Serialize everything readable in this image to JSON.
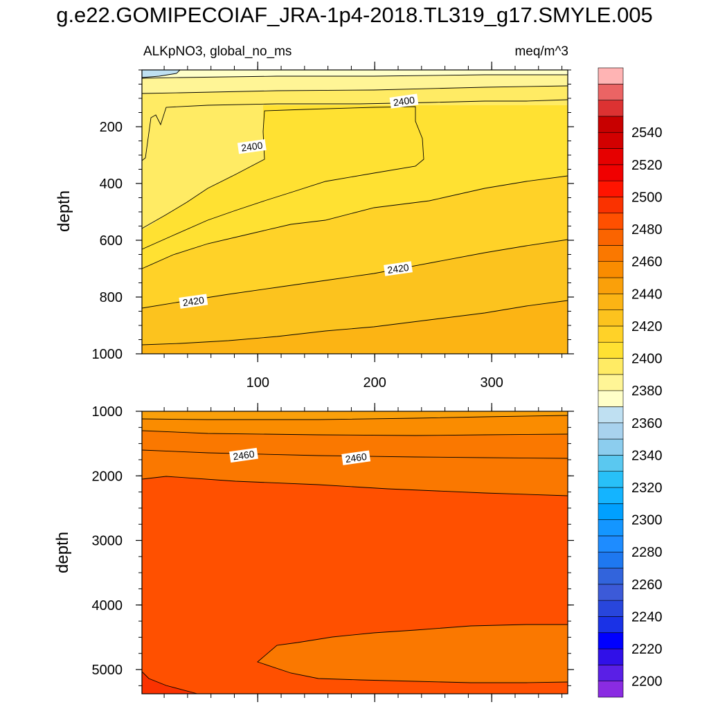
{
  "figure_title": "g.e22.GOMIPECOIAF_JRA-1p4-2018.TL319_g17.SMYLE.005",
  "variable_label": "ALKpNO3, global_no_ms",
  "units_label": "meq/m^3",
  "chart_data": [
    {
      "type": "contour",
      "panel": "top",
      "ylabel": "depth",
      "xlim": [
        1,
        365
      ],
      "ylim": [
        0,
        1000
      ],
      "y_reversed": true,
      "xticks": [
        100,
        200,
        300
      ],
      "yticks": [
        200,
        400,
        600,
        800,
        1000
      ],
      "contour_labels": [
        {
          "text": "2400",
          "x": 225,
          "y": 110
        },
        {
          "text": "2400",
          "x": 95,
          "y": 270
        },
        {
          "text": "2420",
          "x": 220,
          "y": 700
        },
        {
          "text": "2420",
          "x": 45,
          "y": 815
        }
      ]
    },
    {
      "type": "contour",
      "panel": "bottom",
      "ylabel": "depth",
      "xlim": [
        1,
        365
      ],
      "ylim": [
        1000,
        5375
      ],
      "y_reversed": true,
      "xticks": [
        100,
        200,
        300
      ],
      "yticks": [
        1000,
        2000,
        3000,
        4000,
        5000
      ],
      "contour_labels": [
        {
          "text": "2460",
          "x": 88,
          "y": 1680
        },
        {
          "text": "2460",
          "x": 184,
          "y": 1720
        }
      ]
    }
  ],
  "colorbar": {
    "levels": [
      2200,
      2210,
      2220,
      2230,
      2240,
      2250,
      2260,
      2270,
      2280,
      2290,
      2300,
      2310,
      2320,
      2330,
      2340,
      2350,
      2360,
      2370,
      2380,
      2390,
      2400,
      2410,
      2420,
      2430,
      2440,
      2450,
      2460,
      2470,
      2480,
      2490,
      2500,
      2510,
      2520,
      2530,
      2540,
      2550
    ],
    "colors": [
      "#8a2be2",
      "#5a1fe6",
      "#3010e8",
      "#0000ff",
      "#1a32e6",
      "#2846dc",
      "#3c5ad8",
      "#3264dc",
      "#1e78f0",
      "#1e8cff",
      "#1496ff",
      "#00a0ff",
      "#14b4ff",
      "#28c0f8",
      "#5ac8f0",
      "#8ccdee",
      "#a8d2ee",
      "#bfe0f2",
      "#ffffc8",
      "#fff596",
      "#ffeb64",
      "#ffe132",
      "#ffd228",
      "#fcc31e",
      "#fcb414",
      "#faa00a",
      "#fa8c00",
      "#fa7800",
      "#fa6400",
      "#ff5000",
      "#fa3200",
      "#ff1400",
      "#f00000",
      "#e60000",
      "#d20000",
      "#c80000",
      "#dc3232",
      "#eb6464",
      "#ffb4b4"
    ],
    "tick_labels": [
      "2200",
      "2220",
      "2240",
      "2260",
      "2280",
      "2300",
      "2320",
      "2340",
      "2360",
      "2380",
      "2400",
      "2420",
      "2440",
      "2460",
      "2480",
      "2500",
      "2520",
      "2540"
    ]
  }
}
